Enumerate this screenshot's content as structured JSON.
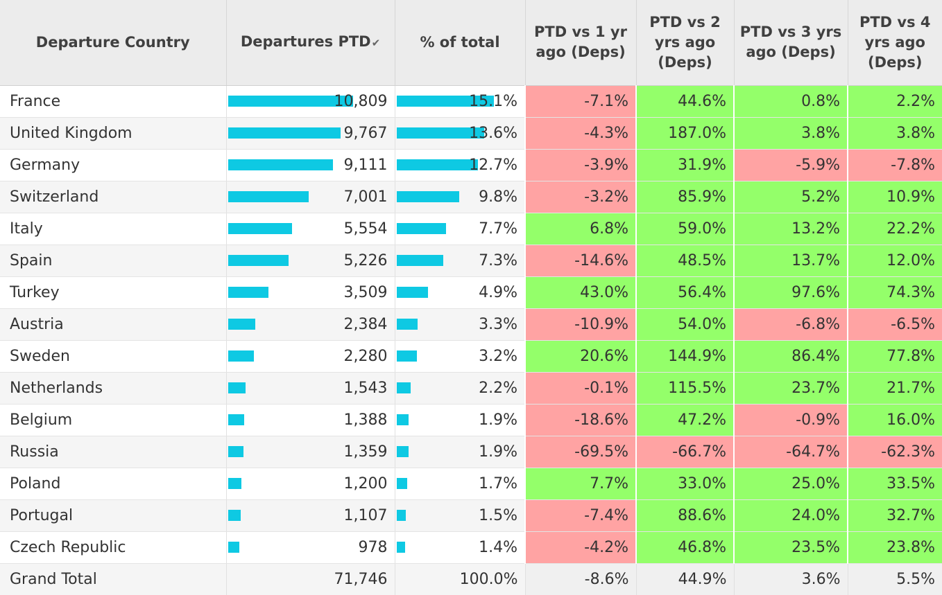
{
  "columns": {
    "country": "Departure Country",
    "deps": "Departures PTD",
    "share": "% of total",
    "vs1": "PTD vs 1 yr ago (Deps)",
    "vs2": "PTD vs 2 yrs ago (Deps)",
    "vs3": "PTD vs 3 yrs ago (Deps)",
    "vs4": "PTD vs 4 yrs ago (Deps)"
  },
  "sort_icon": "sort-descending-icon",
  "colors": {
    "bar": "#0ec9e3",
    "negative": "#ffa3a3",
    "positive": "#94ff6a"
  },
  "chart_data": {
    "type": "table",
    "bar_max_departures": 10809,
    "bar_max_share": 15.1,
    "rows": [
      {
        "country": "France",
        "deps": "10,809",
        "deps_value": 10809,
        "share": "15.1%",
        "share_value": 15.1,
        "vs1": "-7.1%",
        "vs2": "44.6%",
        "vs3": "0.8%",
        "vs4": "2.2%"
      },
      {
        "country": "United Kingdom",
        "deps": "9,767",
        "deps_value": 9767,
        "share": "13.6%",
        "share_value": 13.6,
        "vs1": "-4.3%",
        "vs2": "187.0%",
        "vs3": "3.8%",
        "vs4": "3.8%"
      },
      {
        "country": "Germany",
        "deps": "9,111",
        "deps_value": 9111,
        "share": "12.7%",
        "share_value": 12.7,
        "vs1": "-3.9%",
        "vs2": "31.9%",
        "vs3": "-5.9%",
        "vs4": "-7.8%"
      },
      {
        "country": "Switzerland",
        "deps": "7,001",
        "deps_value": 7001,
        "share": "9.8%",
        "share_value": 9.8,
        "vs1": "-3.2%",
        "vs2": "85.9%",
        "vs3": "5.2%",
        "vs4": "10.9%"
      },
      {
        "country": "Italy",
        "deps": "5,554",
        "deps_value": 5554,
        "share": "7.7%",
        "share_value": 7.7,
        "vs1": "6.8%",
        "vs2": "59.0%",
        "vs3": "13.2%",
        "vs4": "22.2%"
      },
      {
        "country": "Spain",
        "deps": "5,226",
        "deps_value": 5226,
        "share": "7.3%",
        "share_value": 7.3,
        "vs1": "-14.6%",
        "vs2": "48.5%",
        "vs3": "13.7%",
        "vs4": "12.0%"
      },
      {
        "country": "Turkey",
        "deps": "3,509",
        "deps_value": 3509,
        "share": "4.9%",
        "share_value": 4.9,
        "vs1": "43.0%",
        "vs2": "56.4%",
        "vs3": "97.6%",
        "vs4": "74.3%"
      },
      {
        "country": "Austria",
        "deps": "2,384",
        "deps_value": 2384,
        "share": "3.3%",
        "share_value": 3.3,
        "vs1": "-10.9%",
        "vs2": "54.0%",
        "vs3": "-6.8%",
        "vs4": "-6.5%"
      },
      {
        "country": "Sweden",
        "deps": "2,280",
        "deps_value": 2280,
        "share": "3.2%",
        "share_value": 3.2,
        "vs1": "20.6%",
        "vs2": "144.9%",
        "vs3": "86.4%",
        "vs4": "77.8%"
      },
      {
        "country": "Netherlands",
        "deps": "1,543",
        "deps_value": 1543,
        "share": "2.2%",
        "share_value": 2.2,
        "vs1": "-0.1%",
        "vs2": "115.5%",
        "vs3": "23.7%",
        "vs4": "21.7%"
      },
      {
        "country": "Belgium",
        "deps": "1,388",
        "deps_value": 1388,
        "share": "1.9%",
        "share_value": 1.9,
        "vs1": "-18.6%",
        "vs2": "47.2%",
        "vs3": "-0.9%",
        "vs4": "16.0%"
      },
      {
        "country": "Russia",
        "deps": "1,359",
        "deps_value": 1359,
        "share": "1.9%",
        "share_value": 1.9,
        "vs1": "-69.5%",
        "vs2": "-66.7%",
        "vs3": "-64.7%",
        "vs4": "-62.3%"
      },
      {
        "country": "Poland",
        "deps": "1,200",
        "deps_value": 1200,
        "share": "1.7%",
        "share_value": 1.7,
        "vs1": "7.7%",
        "vs2": "33.0%",
        "vs3": "25.0%",
        "vs4": "33.5%"
      },
      {
        "country": "Portugal",
        "deps": "1,107",
        "deps_value": 1107,
        "share": "1.5%",
        "share_value": 1.5,
        "vs1": "-7.4%",
        "vs2": "88.6%",
        "vs3": "24.0%",
        "vs4": "32.7%"
      },
      {
        "country": "Czech Republic",
        "deps": "978",
        "deps_value": 978,
        "share": "1.4%",
        "share_value": 1.4,
        "vs1": "-4.2%",
        "vs2": "46.8%",
        "vs3": "23.5%",
        "vs4": "23.8%"
      }
    ],
    "total": {
      "country": "Grand Total",
      "deps": "71,746",
      "share": "100.0%",
      "vs1": "-8.6%",
      "vs2": "44.9%",
      "vs3": "3.6%",
      "vs4": "5.5%"
    }
  }
}
